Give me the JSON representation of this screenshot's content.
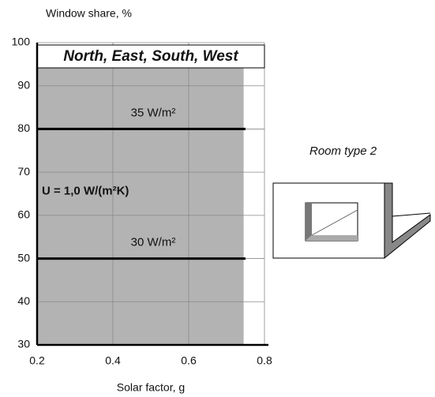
{
  "chart_data": {
    "type": "line",
    "title": "North, East, South, West",
    "y_label": "Window share, %",
    "x_label": "Solar factor, g",
    "annotation": "U = 1,0 W/(m²K)",
    "side_label": "Room type 2",
    "xlim": [
      0.2,
      0.8
    ],
    "xticks": [
      0.2,
      0.4,
      0.6,
      0.8
    ],
    "ylim": [
      30,
      100
    ],
    "yticks": [
      30,
      40,
      50,
      60,
      70,
      80,
      90,
      100
    ],
    "grid": true,
    "region": {
      "x": [
        0.2,
        0.745
      ],
      "y": [
        30,
        94.5
      ],
      "color": "#b3b3b3"
    },
    "series": [
      {
        "name": "35 W/m²",
        "color": "#000000",
        "x": [
          0.2,
          0.75
        ],
        "values": [
          80,
          80
        ]
      },
      {
        "name": "30 W/m²",
        "color": "#000000",
        "x": [
          0.2,
          0.75
        ],
        "values": [
          50,
          50
        ]
      }
    ]
  }
}
